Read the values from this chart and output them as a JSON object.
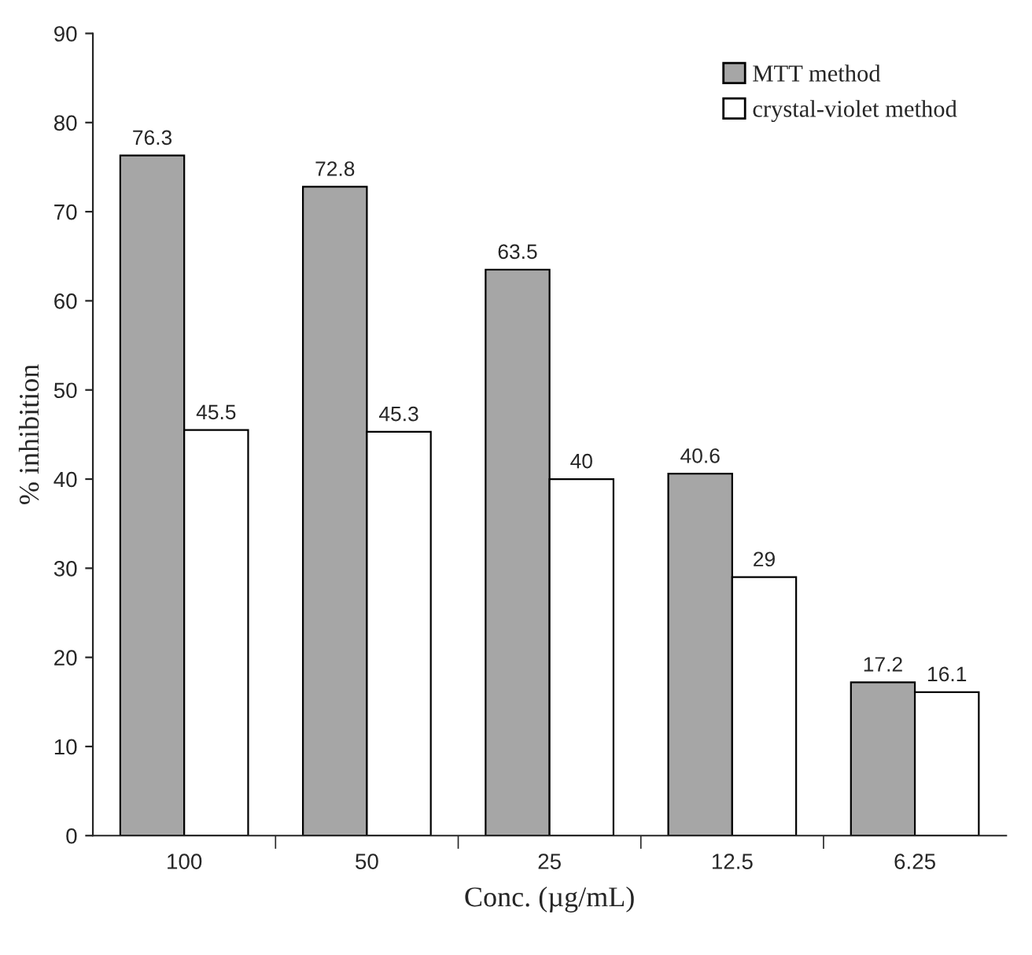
{
  "chart_data": {
    "type": "bar",
    "xlabel": "Conc. (µg/mL)",
    "ylabel": "% inhibition",
    "categories": [
      "100",
      "50",
      "25",
      "12.5",
      "6.25"
    ],
    "series": [
      {
        "name": "MTT method",
        "color": "#a6a6a6",
        "values": [
          76.3,
          72.8,
          63.5,
          40.6,
          17.2
        ]
      },
      {
        "name": "crystal-violet method",
        "color": "#ffffff",
        "values": [
          45.5,
          45.3,
          40,
          29,
          16.1
        ]
      }
    ],
    "ylim": [
      0,
      90
    ],
    "yticks": [
      0,
      10,
      20,
      30,
      40,
      50,
      60,
      70,
      80,
      90
    ],
    "data_labels": true,
    "grid": false,
    "legend": "top right"
  }
}
